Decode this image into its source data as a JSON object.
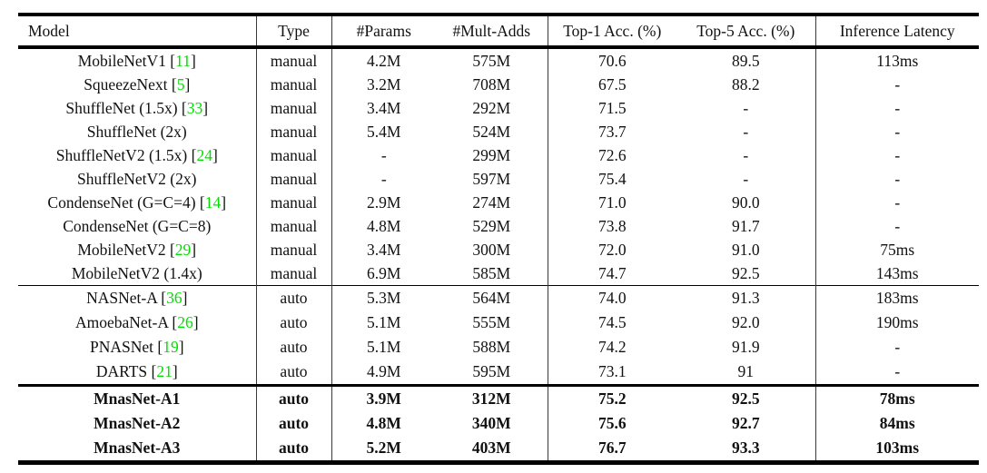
{
  "colors": {
    "citation_green": "#00e000",
    "rule_black": "#000000",
    "background": "#ffffff"
  },
  "table": {
    "headers": [
      {
        "key": "model",
        "label": "Model"
      },
      {
        "key": "type",
        "label": "Type"
      },
      {
        "key": "params",
        "label": "#Params"
      },
      {
        "key": "mult_adds",
        "label": "#Mult-Adds"
      },
      {
        "key": "top1",
        "label": "Top-1 Acc. (%)"
      },
      {
        "key": "top5",
        "label": "Top-5 Acc. (%)"
      },
      {
        "key": "latency",
        "label": "Inference Latency"
      }
    ],
    "groups": [
      {
        "name": "manual-designed-models",
        "bold": false,
        "rows": [
          {
            "model": "MobileNetV1",
            "cite": "11",
            "type": "manual",
            "params": "4.2M",
            "mult_adds": "575M",
            "top1": "70.6",
            "top5": "89.5",
            "latency": "113ms"
          },
          {
            "model": "SqueezeNext",
            "cite": "5",
            "type": "manual",
            "params": "3.2M",
            "mult_adds": "708M",
            "top1": "67.5",
            "top5": "88.2",
            "latency": "-"
          },
          {
            "model": "ShuffleNet (1.5x)",
            "cite": "33",
            "type": "manual",
            "params": "3.4M",
            "mult_adds": "292M",
            "top1": "71.5",
            "top5": "-",
            "latency": "-"
          },
          {
            "model": "ShuffleNet (2x)",
            "cite": "",
            "type": "manual",
            "params": "5.4M",
            "mult_adds": "524M",
            "top1": "73.7",
            "top5": "-",
            "latency": "-"
          },
          {
            "model": "ShuffleNetV2 (1.5x)",
            "cite": "24",
            "type": "manual",
            "params": "-",
            "mult_adds": "299M",
            "top1": "72.6",
            "top5": "-",
            "latency": "-"
          },
          {
            "model": "ShuffleNetV2 (2x)",
            "cite": "",
            "type": "manual",
            "params": "-",
            "mult_adds": "597M",
            "top1": "75.4",
            "top5": "-",
            "latency": "-"
          },
          {
            "model": "CondenseNet (G=C=4)",
            "cite": "14",
            "type": "manual",
            "params": "2.9M",
            "mult_adds": "274M",
            "top1": "71.0",
            "top5": "90.0",
            "latency": "-"
          },
          {
            "model": "CondenseNet (G=C=8)",
            "cite": "",
            "type": "manual",
            "params": "4.8M",
            "mult_adds": "529M",
            "top1": "73.8",
            "top5": "91.7",
            "latency": "-"
          },
          {
            "model": "MobileNetV2",
            "cite": "29",
            "type": "manual",
            "params": "3.4M",
            "mult_adds": "300M",
            "top1": "72.0",
            "top5": "91.0",
            "latency": "75ms"
          },
          {
            "model": "MobileNetV2 (1.4x)",
            "cite": "",
            "type": "manual",
            "params": "6.9M",
            "mult_adds": "585M",
            "top1": "74.7",
            "top5": "92.5",
            "latency": "143ms"
          }
        ]
      },
      {
        "name": "auto-searched-models",
        "bold": false,
        "rows": [
          {
            "model": "NASNet-A",
            "cite": "36",
            "type": "auto",
            "params": "5.3M",
            "mult_adds": "564M",
            "top1": "74.0",
            "top5": "91.3",
            "latency": "183ms"
          },
          {
            "model": "AmoebaNet-A",
            "cite": "26",
            "type": "auto",
            "params": "5.1M",
            "mult_adds": "555M",
            "top1": "74.5",
            "top5": "92.0",
            "latency": "190ms"
          },
          {
            "model": "PNASNet",
            "cite": "19",
            "type": "auto",
            "params": "5.1M",
            "mult_adds": "588M",
            "top1": "74.2",
            "top5": "91.9",
            "latency": "-"
          },
          {
            "model": "DARTS",
            "cite": "21",
            "type": "auto",
            "params": "4.9M",
            "mult_adds": "595M",
            "top1": "73.1",
            "top5": "91",
            "latency": "-"
          }
        ]
      },
      {
        "name": "mnasnet-models",
        "bold": true,
        "rows": [
          {
            "model": "MnasNet-A1",
            "cite": "",
            "type": "auto",
            "params": "3.9M",
            "mult_adds": "312M",
            "top1": "75.2",
            "top5": "92.5",
            "latency": "78ms"
          },
          {
            "model": "MnasNet-A2",
            "cite": "",
            "type": "auto",
            "params": "4.8M",
            "mult_adds": "340M",
            "top1": "75.6",
            "top5": "92.7",
            "latency": "84ms"
          },
          {
            "model": "MnasNet-A3",
            "cite": "",
            "type": "auto",
            "params": "5.2M",
            "mult_adds": "403M",
            "top1": "76.7",
            "top5": "93.3",
            "latency": "103ms"
          }
        ]
      }
    ]
  }
}
